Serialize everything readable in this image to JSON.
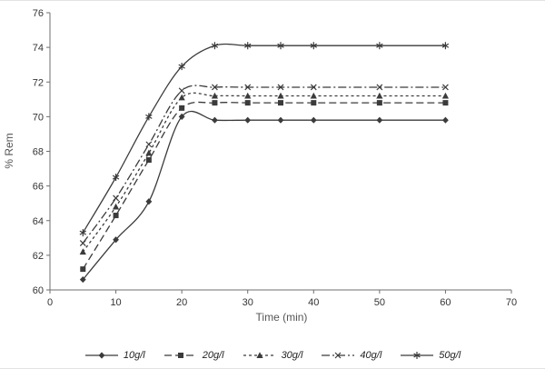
{
  "chart_data": {
    "type": "line",
    "title": "",
    "xlabel": "Time  (min)",
    "ylabel": "% Rem",
    "xlim": [
      0,
      70
    ],
    "ylim": [
      60,
      76
    ],
    "x_ticks": [
      0,
      10,
      20,
      30,
      40,
      50,
      60,
      70
    ],
    "y_ticks": [
      60,
      62,
      64,
      66,
      68,
      70,
      72,
      74,
      76
    ],
    "x": [
      5,
      10,
      15,
      20,
      25,
      30,
      35,
      40,
      50,
      60
    ],
    "series": [
      {
        "name": "10g/l",
        "marker": "diamond",
        "dash": "solid",
        "values": [
          60.6,
          62.9,
          65.1,
          70.0,
          69.8,
          69.8,
          69.8,
          69.8,
          69.8,
          69.8
        ]
      },
      {
        "name": "20g/l",
        "marker": "square",
        "dash": "dashed",
        "values": [
          61.2,
          64.3,
          67.5,
          70.5,
          70.8,
          70.8,
          70.8,
          70.8,
          70.8,
          70.8
        ]
      },
      {
        "name": "30g/l",
        "marker": "triangle",
        "dash": "dotted",
        "values": [
          62.2,
          64.8,
          67.9,
          71.1,
          71.2,
          71.2,
          71.2,
          71.2,
          71.2,
          71.2
        ]
      },
      {
        "name": "40g/l",
        "marker": "x",
        "dash": "dashdot",
        "values": [
          62.7,
          65.3,
          68.4,
          71.5,
          71.7,
          71.7,
          71.7,
          71.7,
          71.7,
          71.7
        ]
      },
      {
        "name": "50g/l",
        "marker": "asterisk",
        "dash": "solid",
        "values": [
          63.3,
          66.5,
          70.0,
          72.9,
          74.1,
          74.1,
          74.1,
          74.1,
          74.1,
          74.1
        ]
      }
    ],
    "grid": false,
    "legend_position": "bottom",
    "line_color": "#3b3b3b",
    "axis_color": "#6f6f6f"
  }
}
